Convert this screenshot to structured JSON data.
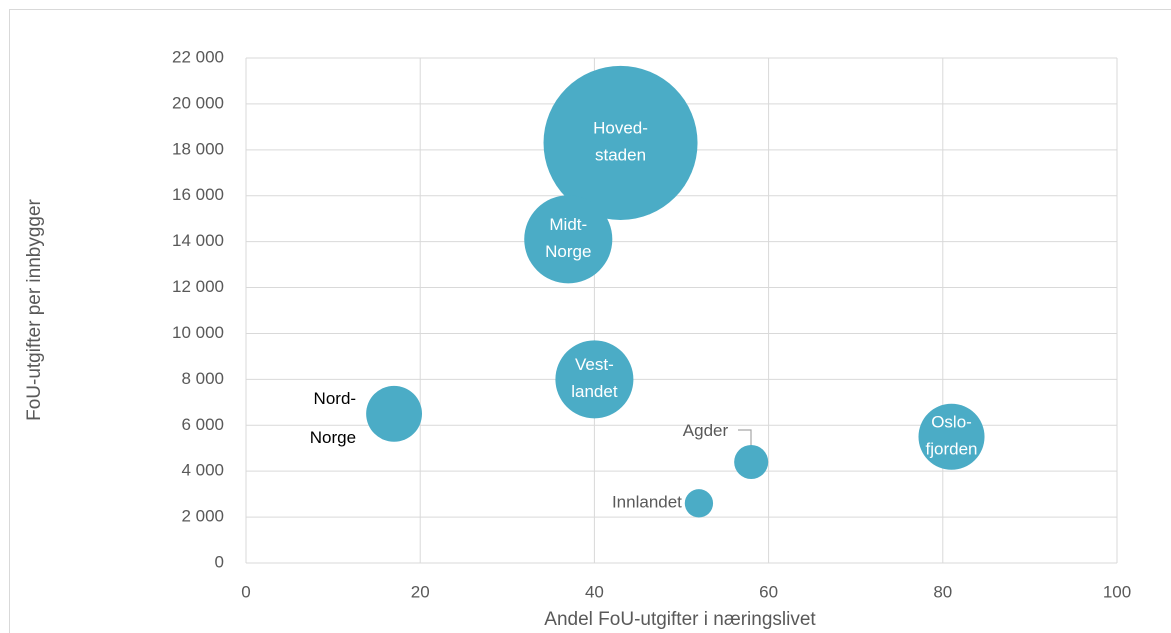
{
  "chart_data": {
    "type": "bubble",
    "xlabel": "Andel FoU-utgifter i næringslivet",
    "ylabel": "FoU-utgifter per innbygger",
    "labels": [
      [
        "Hoved-",
        "staden"
      ],
      [
        "Midt-",
        "Norge"
      ],
      [
        "Vest-",
        "landet"
      ],
      [
        "Nord-",
        "Norge"
      ],
      [
        "Oslo-",
        "fjorden"
      ],
      [
        "Agder"
      ],
      [
        "Innlandet"
      ]
    ],
    "x": [
      43,
      37,
      40,
      17,
      81,
      58,
      52
    ],
    "y": [
      18300,
      14100,
      8000,
      6500,
      5500,
      4400,
      2600
    ],
    "sizes": [
      593,
      194,
      152,
      78,
      109,
      29,
      20
    ],
    "color": "#4bacc6",
    "xlim": [
      0,
      100
    ],
    "xticks": [
      0,
      20,
      40,
      60,
      80,
      100
    ],
    "ylim": [
      0,
      22000
    ],
    "yticks": [
      0,
      {
        "value": 2000,
        "label": "2 000"
      },
      {
        "value": 4000,
        "label": "4 000"
      },
      {
        "value": 6000,
        "label": "6 000"
      },
      {
        "value": 8000,
        "label": "8 000"
      },
      {
        "value": 10000,
        "label": "10 000"
      },
      {
        "value": 12000,
        "label": "12 000"
      },
      {
        "value": 14000,
        "label": "14 000"
      },
      {
        "value": 16000,
        "label": "16 000"
      },
      {
        "value": 18000,
        "label": "18 000"
      },
      {
        "value": 20000,
        "label": "20 000"
      },
      {
        "value": 22000,
        "label": "22 000"
      }
    ],
    "grid": true
  }
}
